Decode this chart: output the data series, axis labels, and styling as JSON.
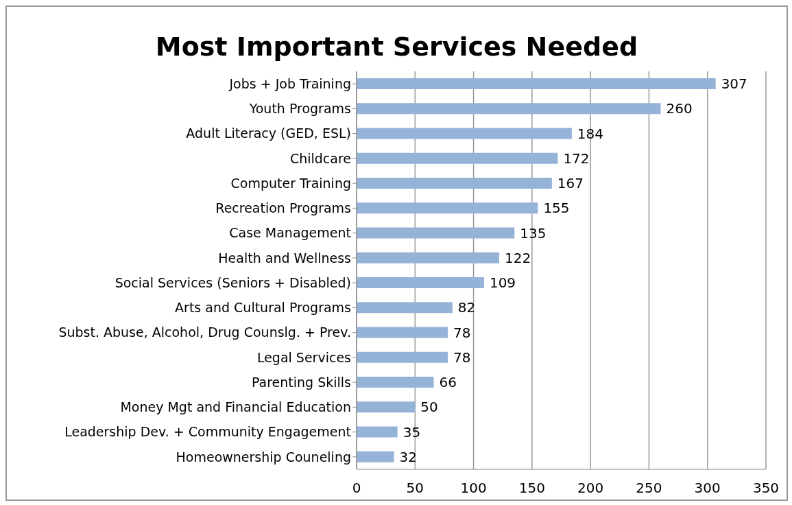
{
  "chart_data": {
    "type": "bar",
    "orientation": "horizontal",
    "title": "Most Important Services Needed",
    "categories": [
      "Jobs + Job Training",
      "Youth Programs",
      "Adult Literacy (GED, ESL)",
      "Childcare",
      "Computer Training",
      "Recreation Programs",
      "Case Management",
      "Health and Wellness",
      "Social Services (Seniors + Disabled)",
      "Arts and Cultural Programs",
      "Subst. Abuse, Alcohol, Drug Counslg. + Prev.",
      "Legal Services",
      "Parenting Skills",
      "Money Mgt and Financial Education",
      "Leadership Dev. + Community Engagement",
      "Homeownership Couneling"
    ],
    "values": [
      307,
      260,
      184,
      172,
      167,
      155,
      135,
      122,
      109,
      82,
      78,
      78,
      66,
      50,
      35,
      32
    ],
    "color": "#95b3d7",
    "xlim": [
      0,
      350
    ],
    "xticks": [
      0,
      50,
      100,
      150,
      200,
      250,
      300,
      350
    ],
    "grid": "x",
    "data_labels": true
  }
}
